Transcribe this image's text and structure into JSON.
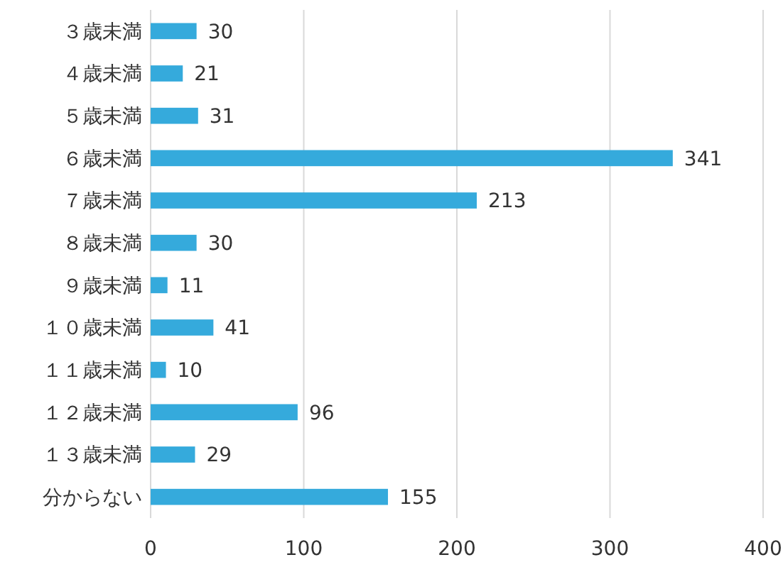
{
  "chart_data": {
    "type": "bar",
    "orientation": "horizontal",
    "categories": [
      "３歳未満",
      "４歳未満",
      "５歳未満",
      "６歳未満",
      "７歳未満",
      "８歳未満",
      "９歳未満",
      "１０歳未満",
      "１１歳未満",
      "１２歳未満",
      "１３歳未満",
      "分からない"
    ],
    "values": [
      30,
      21,
      31,
      341,
      213,
      30,
      11,
      41,
      10,
      96,
      29,
      155
    ],
    "color": "#35aadc",
    "xlim": [
      0,
      400
    ],
    "xticks": [
      0,
      100,
      200,
      300,
      400
    ],
    "grid": "x",
    "data_labels": true
  }
}
